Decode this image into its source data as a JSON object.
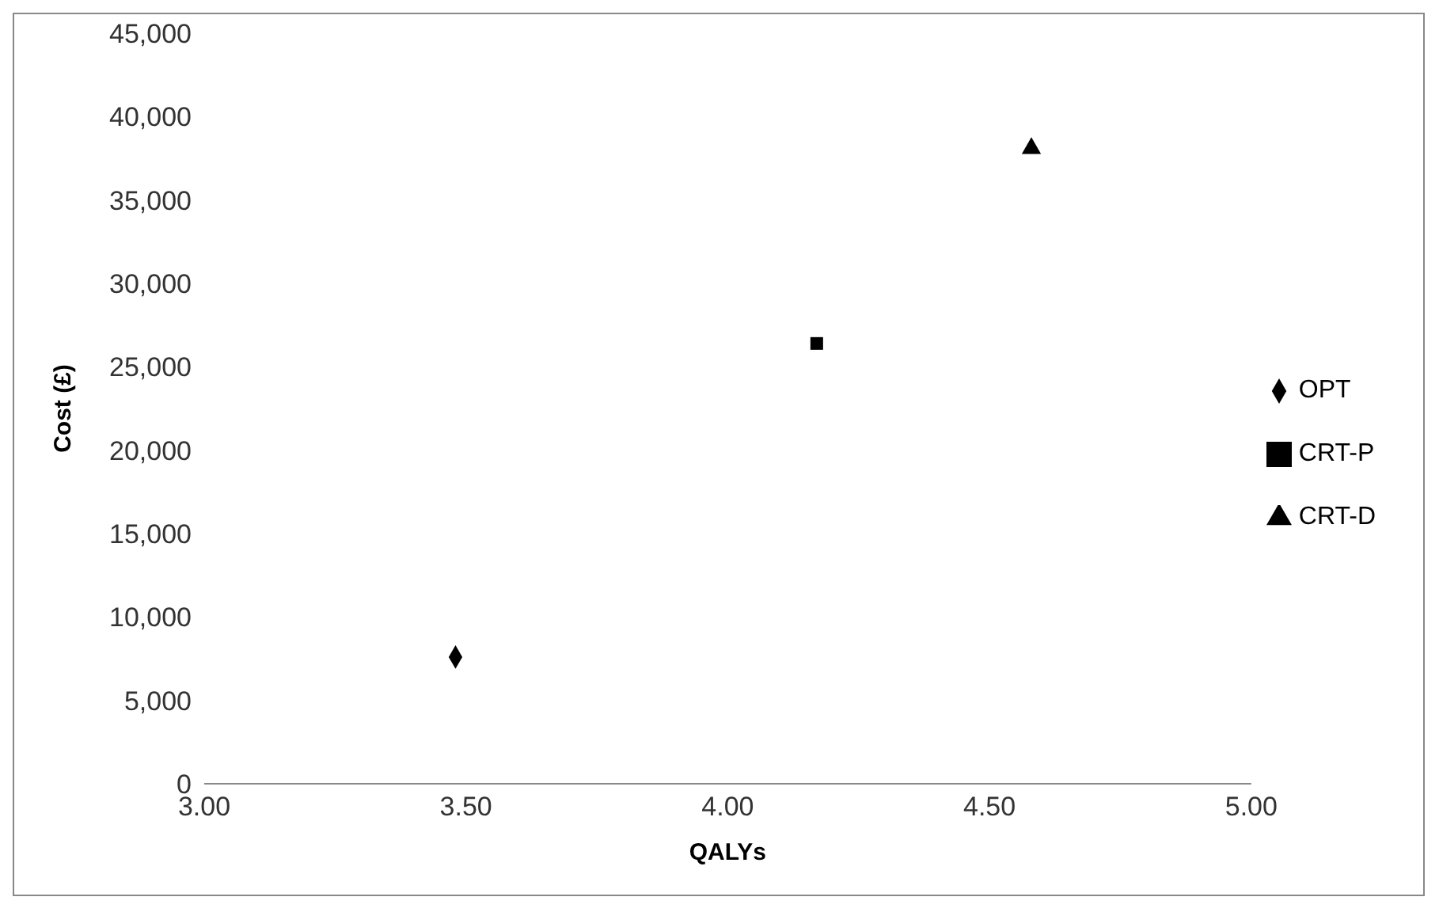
{
  "chart_data": {
    "type": "scatter",
    "xlabel": "QALYs",
    "ylabel": "Cost (£)",
    "xlim": [
      3,
      5
    ],
    "xticks": [
      {
        "value": 3,
        "label": "3.00"
      },
      {
        "value": 3.5,
        "label": "3.50"
      },
      {
        "value": 4,
        "label": "4.00"
      },
      {
        "value": 4.5,
        "label": "4.50"
      },
      {
        "value": 5,
        "label": "5.00"
      }
    ],
    "ylim": [
      0,
      45000
    ],
    "yticks": [
      0,
      {
        "value": 5000,
        "label": "5,000"
      },
      {
        "value": 10000,
        "label": "10,000"
      },
      {
        "value": 15000,
        "label": "15,000"
      },
      {
        "value": 20000,
        "label": "20,000"
      },
      {
        "value": 25000,
        "label": "25,000"
      },
      {
        "value": 30000,
        "label": "30,000"
      },
      {
        "value": 35000,
        "label": "35,000"
      },
      {
        "value": 40000,
        "label": "40,000"
      },
      {
        "value": 45000,
        "label": "45,000"
      }
    ],
    "grid": false,
    "legend": "right",
    "series": [
      {
        "name": "OPT",
        "color": "#000000",
        "marker": "diamond",
        "x": [
          3.48
        ],
        "values": [
          7600
        ]
      },
      {
        "name": "CRT-P",
        "color": "#000000",
        "marker": "square",
        "x": [
          4.17
        ],
        "values": [
          26400
        ]
      },
      {
        "name": "CRT-D",
        "color": "#000000",
        "marker": "triangle",
        "x": [
          4.58
        ],
        "values": [
          38100
        ]
      }
    ]
  }
}
